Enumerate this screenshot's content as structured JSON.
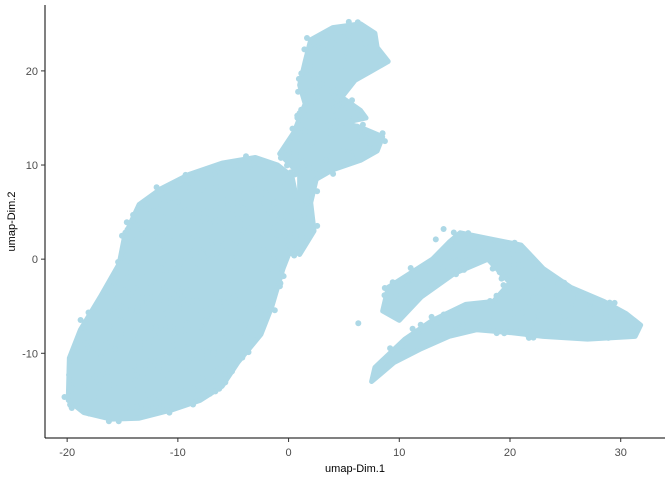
{
  "chart_data": {
    "type": "scatter",
    "title": "",
    "xlabel": "umap-Dim.1",
    "ylabel": "umap-Dim.2",
    "xlim": [
      -22,
      34
    ],
    "ylim": [
      -19,
      27
    ],
    "x_ticks": [
      -20,
      -10,
      0,
      10,
      20,
      30
    ],
    "y_ticks": [
      -10,
      0,
      10,
      20
    ],
    "grid": false,
    "legend": "none",
    "point_color": "#add8e6",
    "description_of_density": "tens of thousands of overlapping points forming clusters",
    "clusters": [
      {
        "outline": [
          [
            -19.8,
            -10.5
          ],
          [
            -19.9,
            -15.0
          ],
          [
            -18.5,
            -16.3
          ],
          [
            -16.0,
            -17.0
          ],
          [
            -13.5,
            -16.9
          ],
          [
            -10.5,
            -16.0
          ],
          [
            -8.0,
            -15.0
          ],
          [
            -6.0,
            -13.5
          ],
          [
            -4.6,
            -11.0
          ],
          [
            -2.5,
            -8.0
          ],
          [
            -1.5,
            -5.0
          ],
          [
            -0.5,
            -1.0
          ],
          [
            0.5,
            2.0
          ],
          [
            0.8,
            6.0
          ],
          [
            0.3,
            8.8
          ],
          [
            -1.0,
            10.0
          ],
          [
            -3.0,
            10.8
          ],
          [
            -6.0,
            10.2
          ],
          [
            -9.0,
            9.0
          ],
          [
            -11.5,
            7.5
          ],
          [
            -13.5,
            5.8
          ],
          [
            -14.8,
            2.5
          ],
          [
            -15.3,
            -0.5
          ],
          [
            -17.0,
            -4.0
          ],
          [
            -18.8,
            -7.5
          ]
        ],
        "dense_points": 2400
      },
      {
        "outline": [
          [
            -0.5,
            2.0
          ],
          [
            1.0,
            6.0
          ],
          [
            1.0,
            9.0
          ],
          [
            -0.8,
            11.2
          ],
          [
            0.5,
            13.5
          ],
          [
            1.5,
            16.5
          ],
          [
            1.0,
            18.5
          ],
          [
            1.5,
            21.0
          ],
          [
            2.0,
            23.3
          ],
          [
            4.0,
            24.6
          ],
          [
            6.5,
            25.0
          ],
          [
            7.8,
            24.0
          ],
          [
            8.0,
            22.5
          ],
          [
            9.0,
            21.0
          ],
          [
            7.5,
            20.0
          ],
          [
            6.0,
            19.0
          ],
          [
            4.8,
            17.2
          ],
          [
            6.5,
            15.8
          ],
          [
            7.0,
            15.0
          ],
          [
            5.0,
            14.5
          ],
          [
            6.5,
            14.0
          ],
          [
            8.5,
            13.0
          ],
          [
            8.0,
            11.5
          ],
          [
            6.5,
            10.5
          ],
          [
            4.0,
            9.5
          ],
          [
            2.5,
            8.5
          ],
          [
            2.0,
            6.0
          ],
          [
            2.3,
            3.0
          ],
          [
            1.0,
            0.5
          ]
        ],
        "dense_points": 900
      },
      {
        "outline": [
          [
            8.5,
            -5.5
          ],
          [
            9.0,
            -3.0
          ],
          [
            11.0,
            -1.5
          ],
          [
            13.0,
            0.0
          ],
          [
            14.5,
            1.8
          ],
          [
            15.5,
            2.8
          ],
          [
            18.0,
            2.2
          ],
          [
            21.0,
            1.5
          ],
          [
            23.0,
            -1.0
          ],
          [
            25.5,
            -3.0
          ],
          [
            28.5,
            -4.5
          ],
          [
            30.5,
            -5.8
          ],
          [
            31.8,
            -7.0
          ],
          [
            31.3,
            -8.2
          ],
          [
            27.0,
            -8.5
          ],
          [
            23.0,
            -8.2
          ],
          [
            20.0,
            -7.8
          ],
          [
            17.0,
            -7.5
          ],
          [
            14.5,
            -8.2
          ],
          [
            12.0,
            -9.5
          ],
          [
            9.5,
            -11.0
          ],
          [
            7.5,
            -13.0
          ],
          [
            7.8,
            -11.5
          ],
          [
            10.5,
            -8.5
          ],
          [
            13.0,
            -6.5
          ],
          [
            16.0,
            -4.8
          ],
          [
            18.5,
            -4.5
          ],
          [
            20.0,
            -2.5
          ],
          [
            18.0,
            0.0
          ],
          [
            15.0,
            -1.5
          ],
          [
            12.0,
            -4.0
          ],
          [
            10.0,
            -6.5
          ]
        ],
        "dense_points": 800
      }
    ],
    "outlier_points": [
      [
        6.3,
        -6.8
      ],
      [
        14.0,
        3.2
      ],
      [
        13.3,
        2.1
      ],
      [
        10.2,
        -9.2
      ],
      [
        11.2,
        -7.4
      ]
    ]
  }
}
